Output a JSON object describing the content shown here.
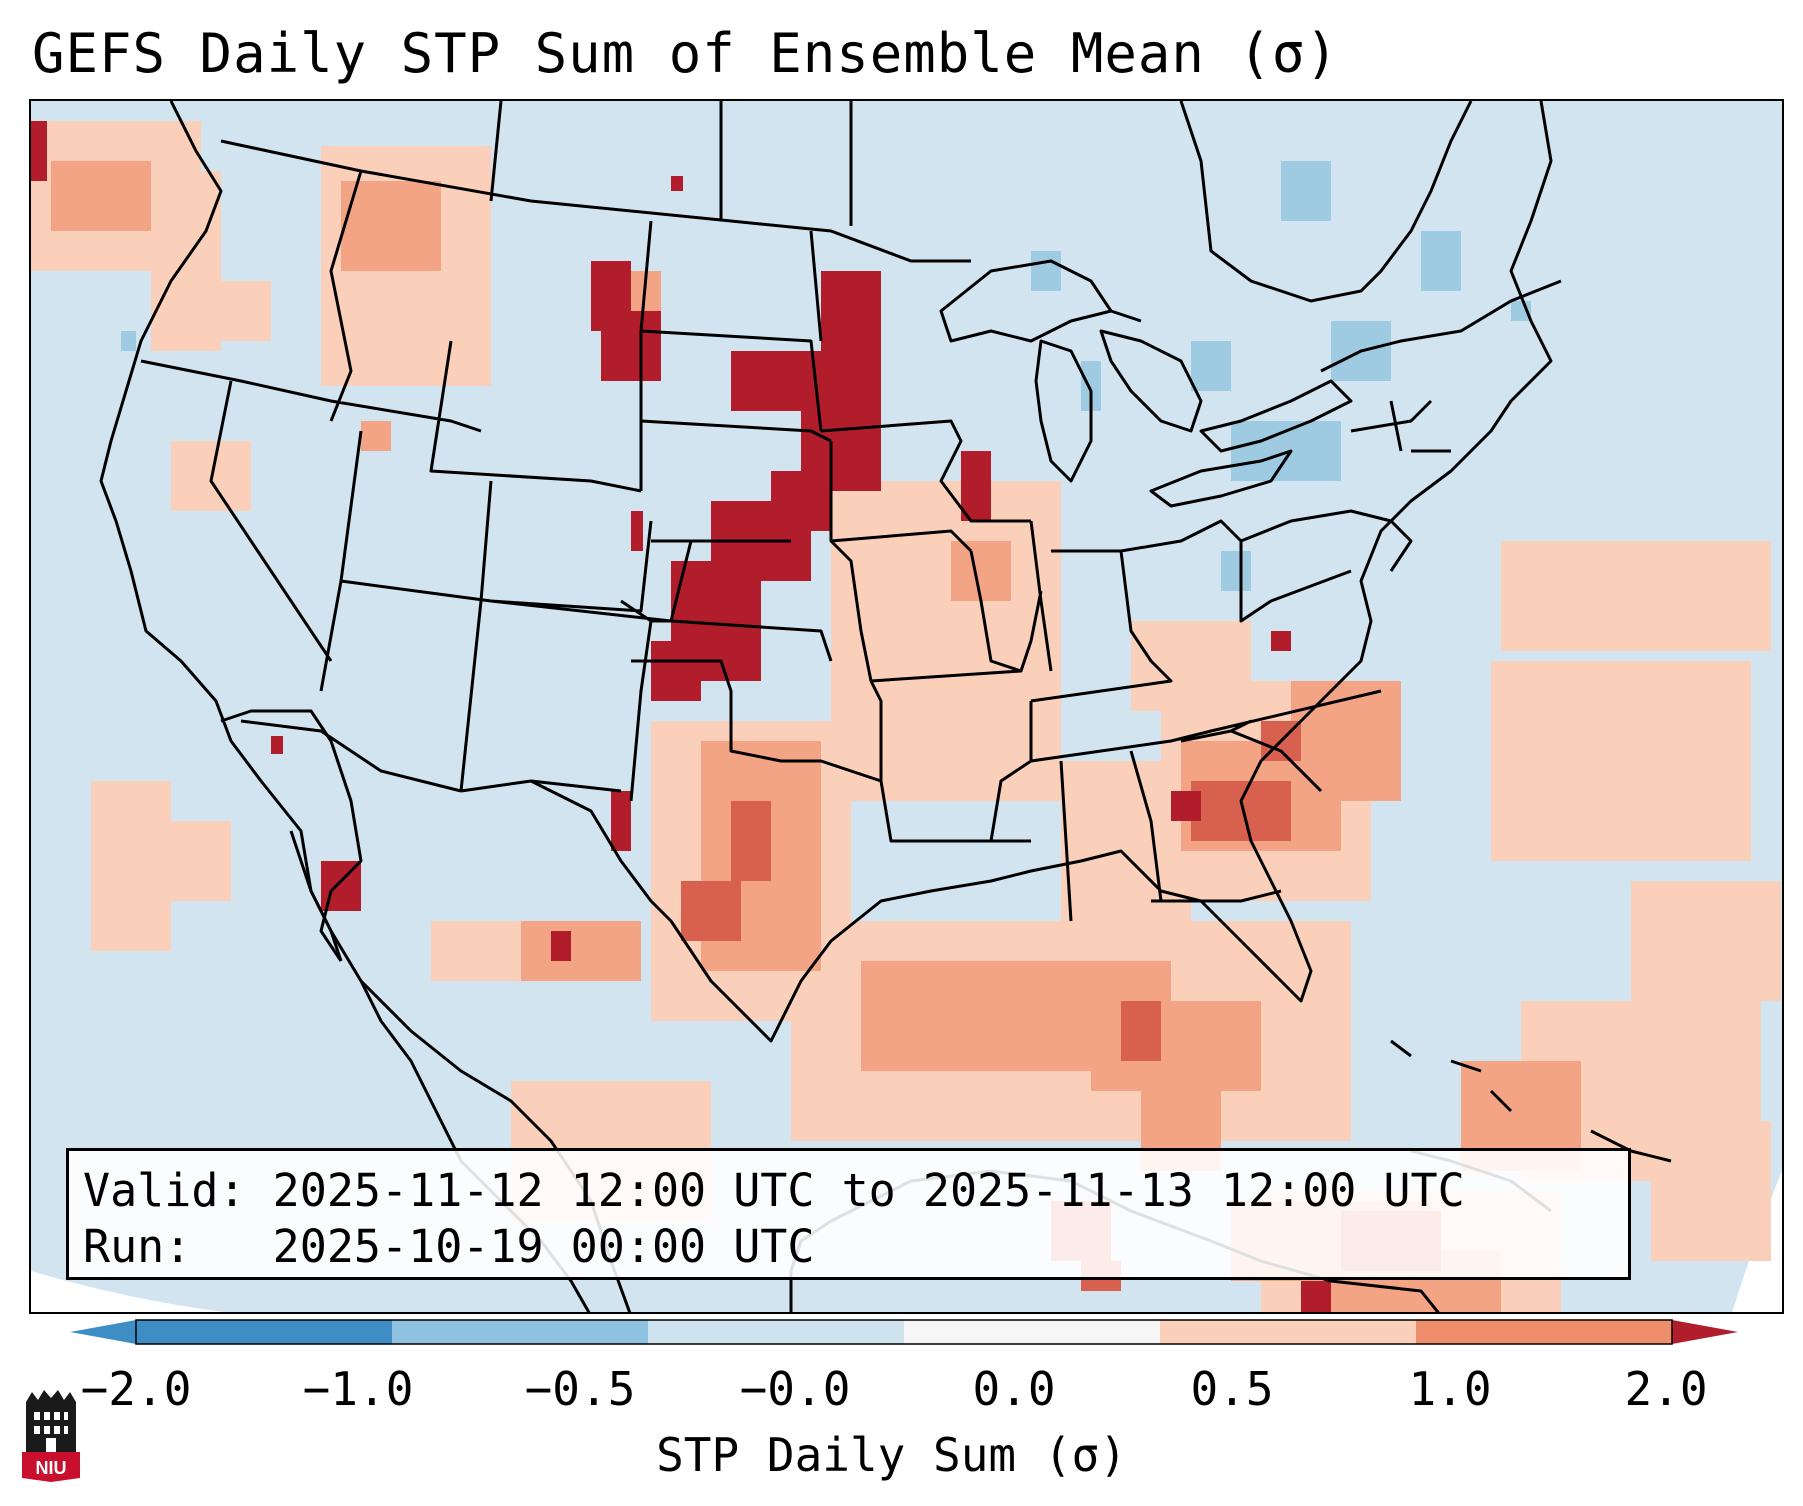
{
  "title": "GEFS Daily STP Sum of Ensemble Mean (σ)",
  "valid_line": "Valid: 2025-11-12 12:00 UTC to 2025-11-13 12:00 UTC",
  "run_line": "Run:   2025-10-19 00:00 UTC",
  "colorbar": {
    "label": "STP Daily Sum (σ)",
    "ticks": [
      "−2.0",
      "−1.0",
      "−0.5",
      "−0.0",
      "0.0",
      "0.5",
      "1.0",
      "2.0"
    ],
    "colors": [
      "#3f8dc5",
      "#8ec2e0",
      "#cfe3ef",
      "#f6f6f6",
      "#fbd0ba",
      "#ef8e6d",
      "#cd4343",
      "#b11d2b"
    ]
  },
  "map_colors": {
    "background": "#d2e4f0",
    "land_outline": "#000000",
    "positive_high": "#b11d2b",
    "positive_mid": "#d8604e",
    "positive_low": "#f3a484",
    "positive_faint": "#fbd0ba",
    "negative_low": "#9fcbe2"
  },
  "logo": {
    "text": "NIU",
    "icon": "niu-logo-icon"
  }
}
